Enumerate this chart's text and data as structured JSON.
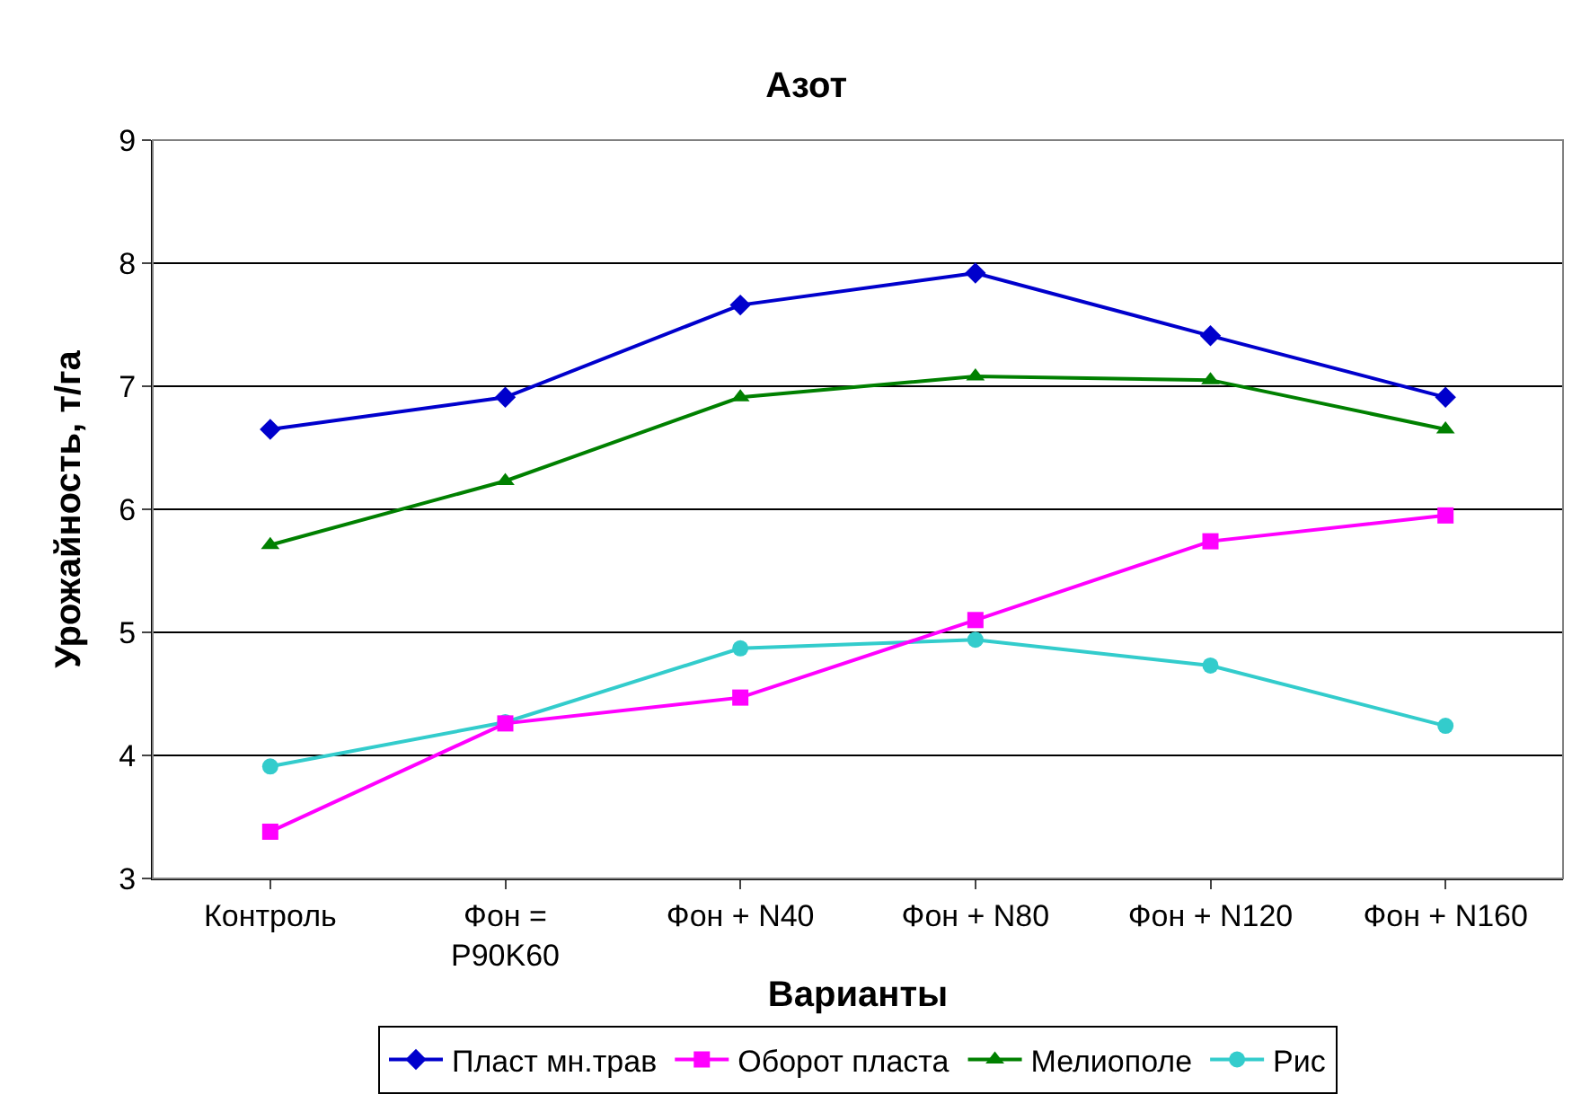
{
  "chart_data": {
    "type": "line",
    "title": "Азот",
    "xlabel": "Варианты",
    "ylabel": "Урожайность, т/га",
    "categories": [
      "Контроль",
      "Фон = P90K60",
      "Фон + N40",
      "Фон + N80",
      "Фон + N120",
      "Фон + N160"
    ],
    "series": [
      {
        "name": "Пласт мн.трав",
        "color": "#0000cc",
        "marker": "diamond",
        "values": [
          6.65,
          6.91,
          7.66,
          7.92,
          7.41,
          6.91
        ]
      },
      {
        "name": "Оборот пласта",
        "color": "#ff00ff",
        "marker": "square",
        "values": [
          3.38,
          4.26,
          4.47,
          5.1,
          5.74,
          5.95
        ]
      },
      {
        "name": "Мелиополе",
        "color": "#008000",
        "marker": "triangle",
        "values": [
          5.71,
          6.23,
          6.91,
          7.08,
          7.05,
          6.65
        ]
      },
      {
        "name": "Рис",
        "color": "#33cccc",
        "marker": "circle",
        "values": [
          3.91,
          4.27,
          4.87,
          4.94,
          4.73,
          4.24
        ]
      }
    ],
    "ylim": [
      3,
      9
    ],
    "yticks": [
      3,
      4,
      5,
      6,
      7,
      8,
      9
    ],
    "grid": "y",
    "legend": "bottom"
  }
}
